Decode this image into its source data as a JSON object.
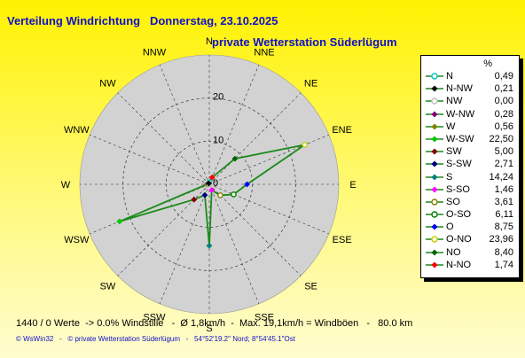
{
  "title": "Verteilung Windrichtung   Donnerstag, 23.10.2025",
  "subtitle": "private Wetterstation Süderlügum",
  "legend_header": "%",
  "footer_stats": "1440 / 0 Werte  -> 0.0% Windstille   -  Ø 1,8km/h  -  Max. 19,1km/h = Windböen   -   80.0 km",
  "footer_credit": "© WsWin32   -   © private Wetterstation Süderlügum   -   54°52'19.2\" Nord; 8°54'45.1\"Ost",
  "colors": {
    "line": "#1a8a1a",
    "disc": "#d2d2d2",
    "title": "#1010c8"
  },
  "chart_data": {
    "type": "radar",
    "unit": "%",
    "rlim": [
      0,
      30
    ],
    "rticks": [
      0,
      10,
      20
    ],
    "rtick_labels": [
      "0",
      "10",
      "20"
    ],
    "compass_labels": [
      "N",
      "NNE",
      "NE",
      "ENE",
      "E",
      "ESE",
      "SE",
      "SSE",
      "S",
      "SSW",
      "SW",
      "WSW",
      "W",
      "WNW",
      "NW",
      "NNW"
    ],
    "series": [
      {
        "directions": [
          "N",
          "NNE",
          "NE",
          "ENE",
          "E",
          "ESE",
          "SE",
          "SSE",
          "S",
          "SSW",
          "SW",
          "WSW",
          "W",
          "WNW",
          "NW",
          "NNW"
        ],
        "values": [
          0.49,
          1.74,
          8.4,
          23.96,
          8.75,
          6.11,
          3.61,
          1.46,
          14.24,
          2.71,
          5.0,
          22.5,
          0.56,
          0.28,
          0.0,
          0.21
        ]
      }
    ]
  },
  "legend": [
    {
      "label": "N",
      "value": "0,49",
      "color": "#00c8c8",
      "marker": "circle-open"
    },
    {
      "label": "N-NW",
      "value": "0,21",
      "color": "#000000",
      "marker": "diamond"
    },
    {
      "label": "NW",
      "value": "0,00",
      "color": "#c0c0c0",
      "marker": "circle-open"
    },
    {
      "label": "W-NW",
      "value": "0,28",
      "color": "#800080",
      "marker": "diamond"
    },
    {
      "label": "W",
      "value": "0,56",
      "color": "#808000",
      "marker": "diamond"
    },
    {
      "label": "W-SW",
      "value": "22,50",
      "color": "#00c800",
      "marker": "diamond"
    },
    {
      "label": "SW",
      "value": "5,00",
      "color": "#800000",
      "marker": "diamond"
    },
    {
      "label": "S-SW",
      "value": "2,71",
      "color": "#000080",
      "marker": "diamond"
    },
    {
      "label": "S",
      "value": "14,24",
      "color": "#008080",
      "marker": "diamond"
    },
    {
      "label": "S-SO",
      "value": "1,46",
      "color": "#ff00ff",
      "marker": "diamond"
    },
    {
      "label": "SO",
      "value": "3,61",
      "color": "#808000",
      "marker": "circle-open"
    },
    {
      "label": "O-SO",
      "value": "6,11",
      "color": "#008000",
      "marker": "circle-open"
    },
    {
      "label": "O",
      "value": "8,75",
      "color": "#0000ff",
      "marker": "diamond"
    },
    {
      "label": "O-NO",
      "value": "23,96",
      "color": "#c8c800",
      "marker": "circle-open"
    },
    {
      "label": "NO",
      "value": "8,40",
      "color": "#006400",
      "marker": "diamond"
    },
    {
      "label": "N-NO",
      "value": "1,74",
      "color": "#ff0000",
      "marker": "diamond"
    }
  ]
}
